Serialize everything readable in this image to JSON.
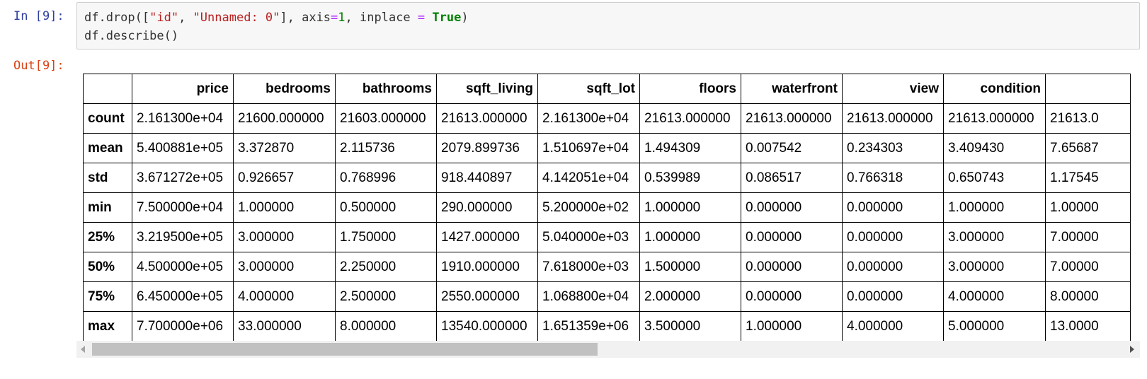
{
  "cell_in": {
    "prompt": "In [9]:"
  },
  "code": {
    "line1": {
      "p1": "df.drop([",
      "s1": "\"id\"",
      "p2": ", ",
      "s2": "\"Unnamed: 0\"",
      "p3": "], axis",
      "op1": "=",
      "n1": "1",
      "p4": ", inplace ",
      "op2": "=",
      "p5": " ",
      "kw": "True",
      "p6": ")"
    },
    "line2": "df.describe()"
  },
  "cell_out": {
    "prompt": "Out[9]:"
  },
  "table": {
    "columns": [
      "",
      "price",
      "bedrooms",
      "bathrooms",
      "sqft_living",
      "sqft_lot",
      "floors",
      "waterfront",
      "view",
      "condition",
      ""
    ],
    "rows": [
      {
        "label": "count",
        "values": [
          "2.161300e+04",
          "21600.000000",
          "21603.000000",
          "21613.000000",
          "2.161300e+04",
          "21613.000000",
          "21613.000000",
          "21613.000000",
          "21613.000000",
          "21613.0"
        ]
      },
      {
        "label": "mean",
        "values": [
          "5.400881e+05",
          "3.372870",
          "2.115736",
          "2079.899736",
          "1.510697e+04",
          "1.494309",
          "0.007542",
          "0.234303",
          "3.409430",
          "7.65687"
        ]
      },
      {
        "label": "std",
        "values": [
          "3.671272e+05",
          "0.926657",
          "0.768996",
          "918.440897",
          "4.142051e+04",
          "0.539989",
          "0.086517",
          "0.766318",
          "0.650743",
          "1.17545"
        ]
      },
      {
        "label": "min",
        "values": [
          "7.500000e+04",
          "1.000000",
          "0.500000",
          "290.000000",
          "5.200000e+02",
          "1.000000",
          "0.000000",
          "0.000000",
          "1.000000",
          "1.00000"
        ]
      },
      {
        "label": "25%",
        "values": [
          "3.219500e+05",
          "3.000000",
          "1.750000",
          "1427.000000",
          "5.040000e+03",
          "1.000000",
          "0.000000",
          "0.000000",
          "3.000000",
          "7.00000"
        ]
      },
      {
        "label": "50%",
        "values": [
          "4.500000e+05",
          "3.000000",
          "2.250000",
          "1910.000000",
          "7.618000e+03",
          "1.500000",
          "0.000000",
          "0.000000",
          "3.000000",
          "7.00000"
        ]
      },
      {
        "label": "75%",
        "values": [
          "6.450000e+05",
          "4.000000",
          "2.500000",
          "2550.000000",
          "1.068800e+04",
          "2.000000",
          "0.000000",
          "0.000000",
          "4.000000",
          "8.00000"
        ]
      },
      {
        "label": "max",
        "values": [
          "7.700000e+06",
          "33.000000",
          "8.000000",
          "13540.000000",
          "1.651359e+06",
          "3.500000",
          "1.000000",
          "4.000000",
          "5.000000",
          "13.0000"
        ]
      }
    ]
  },
  "scroll": {
    "position_fraction": 0.0,
    "visible_fraction": 0.49
  },
  "colors": {
    "in_prompt": "#303f9f",
    "out_prompt": "#d84315",
    "string": "#ba2121",
    "keyword": "#008000",
    "code_bg": "#f7f7f7"
  },
  "icons": {
    "scroll_left": "scroll-left-arrow-icon",
    "scroll_right": "scroll-right-arrow-icon"
  }
}
